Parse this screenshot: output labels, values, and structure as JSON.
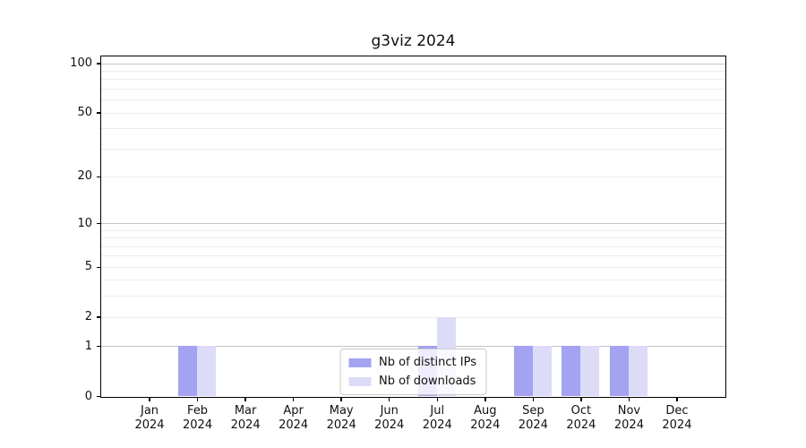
{
  "chart_data": {
    "type": "bar",
    "title": "g3viz 2024",
    "categories": [
      "Jan",
      "Feb",
      "Mar",
      "Apr",
      "May",
      "Jun",
      "Jul",
      "Aug",
      "Sep",
      "Oct",
      "Nov",
      "Dec"
    ],
    "year_label": "2024",
    "series": [
      {
        "name": "Nb of distinct IPs",
        "color": "#a3a3f2",
        "values": [
          0,
          1,
          0,
          0,
          0,
          0,
          1,
          0,
          1,
          1,
          1,
          0
        ]
      },
      {
        "name": "Nb of downloads",
        "color": "#dcdcf8",
        "values": [
          0,
          1,
          0,
          0,
          0,
          0,
          2,
          0,
          1,
          1,
          1,
          0
        ]
      }
    ],
    "yscale": "log1p",
    "y_ticks": [
      0,
      1,
      2,
      5,
      10,
      20,
      50,
      100
    ],
    "ylim": [
      0,
      110
    ],
    "grid": "horizontal",
    "grid_major_at": [
      1,
      10,
      100
    ],
    "legend_position": "lower center",
    "colors": {
      "spine": "#000000",
      "grid_minor": "#ececec",
      "grid_major": "#c6c6c6",
      "background": "#ffffff"
    }
  }
}
